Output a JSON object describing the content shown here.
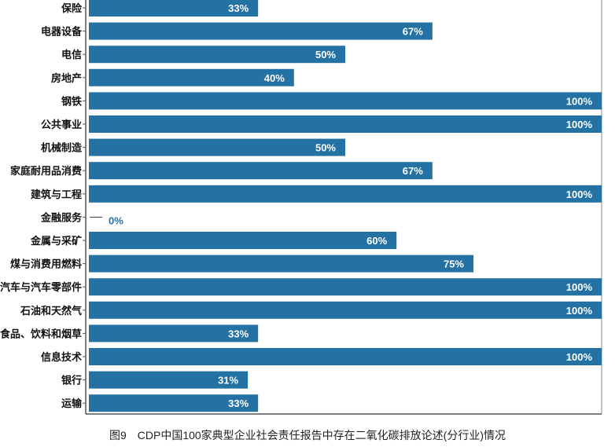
{
  "chart_data": {
    "type": "bar",
    "orientation": "horizontal",
    "title": "图9　CDP中国100家典型企业社会责任报告中存在二氧化碳排放论述(分行业)情况",
    "xlabel": "",
    "ylabel": "",
    "xlim": [
      0,
      100
    ],
    "unit": "%",
    "grid": false,
    "categories": [
      "保险",
      "电器设备",
      "电信",
      "房地产",
      "钢铁",
      "公共事业",
      "机械制造",
      "家庭耐用品消费",
      "建筑与工程",
      "金融服务",
      "金属与采矿",
      "煤与消费用燃料",
      "汽车与汽车零部件",
      "石油和天然气",
      "食品、饮料和烟草",
      "信息技术",
      "银行",
      "运输"
    ],
    "values": [
      33,
      67,
      50,
      40,
      100,
      100,
      50,
      67,
      100,
      0,
      60,
      75,
      100,
      100,
      33,
      100,
      31,
      33
    ],
    "labels": [
      "33%",
      "67%",
      "50%",
      "40%",
      "100%",
      "100%",
      "50%",
      "67%",
      "100%",
      "0%",
      "60%",
      "75%",
      "100%",
      "100%",
      "33%",
      "100%",
      "31%",
      "33%"
    ],
    "colors": {
      "bar": "#2471a3",
      "zero_label": "#2471a3"
    }
  }
}
